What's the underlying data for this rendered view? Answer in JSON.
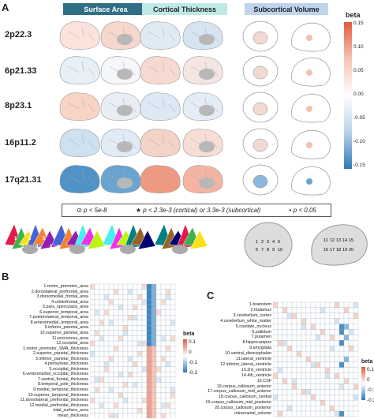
{
  "panels": {
    "a": "A",
    "b": "B",
    "c": "C"
  },
  "headers": {
    "surface_area": "Surface Area",
    "cortical_thickness": "Cortical Thickness",
    "subcortical_volume": "Subcortical Volume"
  },
  "rows": [
    "2p22.3",
    "6p21.33",
    "8p23.1",
    "16p11.2",
    "17q21.31"
  ],
  "legend": {
    "item1": "p < 5e-8",
    "item2": "p < 2.3e-3 (cortical) or 3.3e-3 (subcortical)",
    "item3": "p < 0.05"
  },
  "beta_scale_a": {
    "title": "beta",
    "ticks": [
      "0.15",
      "0.10",
      "0.05",
      "0.00",
      "-0.05",
      "-0.10",
      "-0.15"
    ]
  },
  "beta_scale_b": {
    "title": "beta",
    "ticks": [
      "0.1",
      "0",
      "-0.1",
      "-0.2"
    ]
  },
  "beta_scale_c": {
    "title": "beta",
    "ticks": [
      "0.1",
      "0",
      "-0.1",
      "-0.2"
    ]
  },
  "atlas_numbers_left": [
    "1",
    "2",
    "3",
    "4",
    "5",
    "6",
    "7",
    "8",
    "9",
    "10",
    "11",
    "12"
  ],
  "subcortical_numbers": [
    "1",
    "2",
    "3",
    "4",
    "5",
    "6",
    "7",
    "8",
    "9",
    "10",
    "11",
    "12",
    "13",
    "14",
    "15",
    "16",
    "17",
    "18",
    "19",
    "20"
  ],
  "panel_b_rows": [
    "1.motor_premotor_area",
    "2.dorsolateral_prefrontal_area",
    "3.dorsomedial_frontal_area",
    "4.orbitofrontal_area",
    "5.pars_opercularis_area",
    "6.superior_temporal_area",
    "7.posterolateral_temporal_area",
    "8.anteromedial_temporal_area",
    "9.inferior_parietal_area",
    "10.superior_parietal_area",
    "11.precuneus_area",
    "12.occipital_area",
    "1.motor_premotor_SMA_thickness",
    "2.superior_parietal_thickness",
    "3.inferior_parietal_thickness",
    "4.perisylvian_thickness",
    "5.occipital_thickness",
    "6.ventromedial_occipital_thickness",
    "7.ventral_frontal_thickness",
    "8.temporal_pole_thickness",
    "9.medial_temporal_thickness",
    "10.superior_temporal_thickness",
    "11.dorsolateral_prefrontal_thickness",
    "12.medial_prefrontal_thickness",
    "total_surface_area",
    "mean_thickness"
  ],
  "panel_c_rows": [
    "1.brainstem",
    "2.thalamus",
    "3.cerebellum_cortex",
    "4.cerebellum_white_matter",
    "5.caudate_nucleus",
    "6.pallidum",
    "7.putamen",
    "8.hippocampus",
    "9.amygdala",
    "10.ventral_diencephalon",
    "11.lateral_ventricle",
    "12.inferior_lateral_ventricle",
    "13.3rd_ventricle",
    "14.4th_ventricle",
    "15.CSF",
    "16.corpus_callosum_anterior",
    "17.corpus_callosum_mid_anterior",
    "18.corpus_callosum_central",
    "19.corpus_callosum_mid_posterior",
    "20.corpus_callosum_posterior",
    "intracranial_volume"
  ],
  "colors": {
    "pos": "#e8765e",
    "neg": "#3a86bf",
    "neutral": "#f4f4f4",
    "brain": "#dcdcdc",
    "sa_header": "#2f6f86",
    "ct_header": "#bfe9e7",
    "sv_header": "#bfd3ec"
  }
}
